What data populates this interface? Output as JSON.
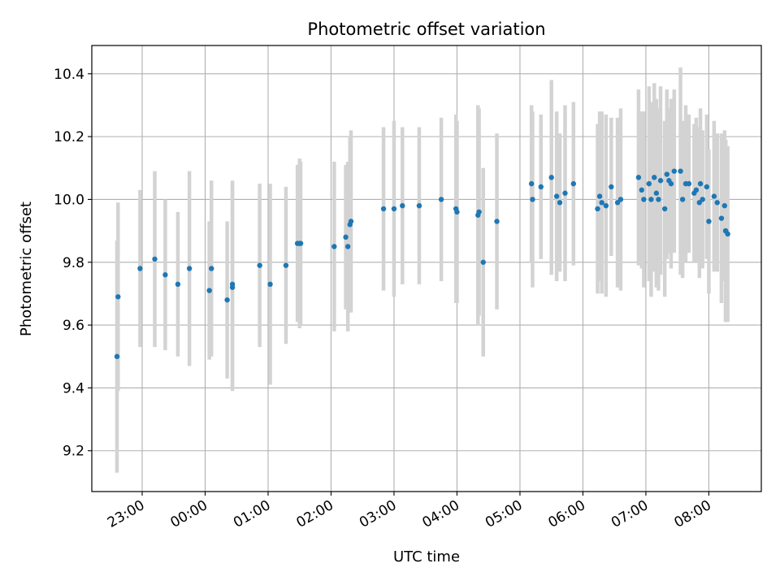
{
  "chart_data": {
    "type": "scatter",
    "title": "Photometric offset variation",
    "xlabel": "UTC time",
    "ylabel": "Photometric offset",
    "x_tick_labels": [
      "23:00",
      "00:00",
      "01:00",
      "02:00",
      "03:00",
      "04:00",
      "05:00",
      "06:00",
      "07:00",
      "08:00"
    ],
    "y_ticks": [
      9.2,
      9.4,
      9.6,
      9.8,
      10.0,
      10.2,
      10.4
    ],
    "y_tick_labels": [
      "9.2",
      "9.4",
      "9.6",
      "9.8",
      "10.0",
      "10.2",
      "10.4"
    ],
    "xlim": [
      "22:12",
      "08:50"
    ],
    "ylim": [
      9.07,
      10.49
    ],
    "grid": true,
    "colors": {
      "point": "#1f77b4",
      "errorbar": "#d3d3d3",
      "grid": "#b0b0b0"
    },
    "series": [
      {
        "x": [
          "22:36",
          "22:37",
          "22:58",
          "23:12",
          "23:22",
          "23:34",
          "23:45",
          "00:04",
          "00:06",
          "00:21",
          "00:26",
          "00:26",
          "00:52",
          "01:02",
          "01:17",
          "01:28",
          "01:30",
          "01:31",
          "02:03",
          "02:14",
          "02:16",
          "02:18",
          "02:19",
          "02:50",
          "03:00",
          "03:08",
          "03:24",
          "03:45",
          "03:59",
          "04:00",
          "04:20",
          "04:21",
          "04:25",
          "04:38",
          "05:11",
          "05:12",
          "05:20",
          "05:30",
          "05:35",
          "05:38",
          "05:43",
          "05:51",
          "06:14",
          "06:16",
          "06:18",
          "06:22",
          "06:27",
          "06:33",
          "06:36",
          "06:53",
          "06:56",
          "06:58",
          "07:03",
          "07:05",
          "07:08",
          "07:10",
          "07:12",
          "07:14",
          "07:18",
          "07:20",
          "07:22",
          "07:24",
          "07:27",
          "07:33",
          "07:35",
          "07:38",
          "07:41",
          "07:46",
          "07:48",
          "07:51",
          "07:52",
          "07:54",
          "07:58",
          "08:00",
          "08:05",
          "08:08",
          "08:12",
          "08:15",
          "08:16",
          "08:16",
          "08:18"
        ],
        "y": [
          9.5,
          9.69,
          9.78,
          9.81,
          9.76,
          9.73,
          9.78,
          9.71,
          9.78,
          9.68,
          9.73,
          9.72,
          9.79,
          9.73,
          9.79,
          9.86,
          9.86,
          9.86,
          9.85,
          9.88,
          9.85,
          9.92,
          9.93,
          9.97,
          9.97,
          9.98,
          9.98,
          10.0,
          9.97,
          9.96,
          9.95,
          9.96,
          9.8,
          9.93,
          10.05,
          10.0,
          10.04,
          10.07,
          10.01,
          9.99,
          10.02,
          10.05,
          9.97,
          10.01,
          9.99,
          9.98,
          10.04,
          9.99,
          10.0,
          10.07,
          10.03,
          10.0,
          10.05,
          10.0,
          10.07,
          10.02,
          10.0,
          10.06,
          9.97,
          10.08,
          10.06,
          10.05,
          10.09,
          10.09,
          10.0,
          10.05,
          10.05,
          10.02,
          10.03,
          9.99,
          10.05,
          10.0,
          10.04,
          9.93,
          10.01,
          9.99,
          9.94,
          9.98,
          9.9,
          9.9,
          9.89
        ],
        "err": [
          0.37,
          0.3,
          0.25,
          0.28,
          0.24,
          0.23,
          0.31,
          0.22,
          0.28,
          0.25,
          0.33,
          0.33,
          0.26,
          0.32,
          0.25,
          0.25,
          0.27,
          0.26,
          0.27,
          0.23,
          0.27,
          0.28,
          0.29,
          0.26,
          0.28,
          0.25,
          0.25,
          0.26,
          0.3,
          0.29,
          0.35,
          0.33,
          0.3,
          0.28,
          0.25,
          0.28,
          0.23,
          0.31,
          0.27,
          0.22,
          0.28,
          0.26,
          0.27,
          0.27,
          0.29,
          0.29,
          0.22,
          0.27,
          0.29,
          0.28,
          0.25,
          0.28,
          0.31,
          0.31,
          0.3,
          0.3,
          0.29,
          0.3,
          0.28,
          0.27,
          0.23,
          0.27,
          0.26,
          0.33,
          0.25,
          0.25,
          0.22,
          0.22,
          0.23,
          0.24,
          0.24,
          0.22,
          0.23,
          0.23,
          0.24,
          0.22,
          0.27,
          0.24,
          0.29,
          0.29,
          0.28
        ]
      }
    ]
  }
}
